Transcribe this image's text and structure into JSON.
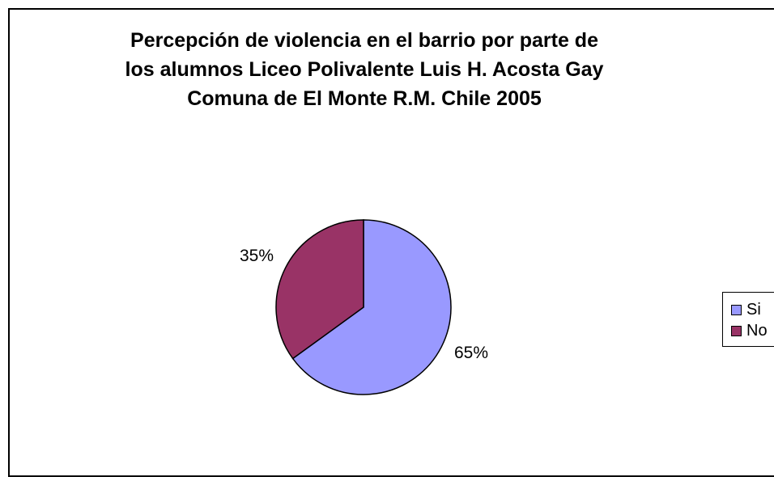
{
  "chart_data": {
    "type": "pie",
    "title_lines": [
      "Percepción de violencia en el barrio por parte de",
      "los alumnos Liceo Polivalente Luis H. Acosta Gay",
      "Comuna de El Monte R.M. Chile 2005"
    ],
    "categories": [
      "Si",
      "No"
    ],
    "values": [
      65,
      35
    ],
    "data_labels": [
      "65%",
      "35%"
    ],
    "colors": [
      "#9999FF",
      "#993366"
    ],
    "legend_position": "right"
  }
}
